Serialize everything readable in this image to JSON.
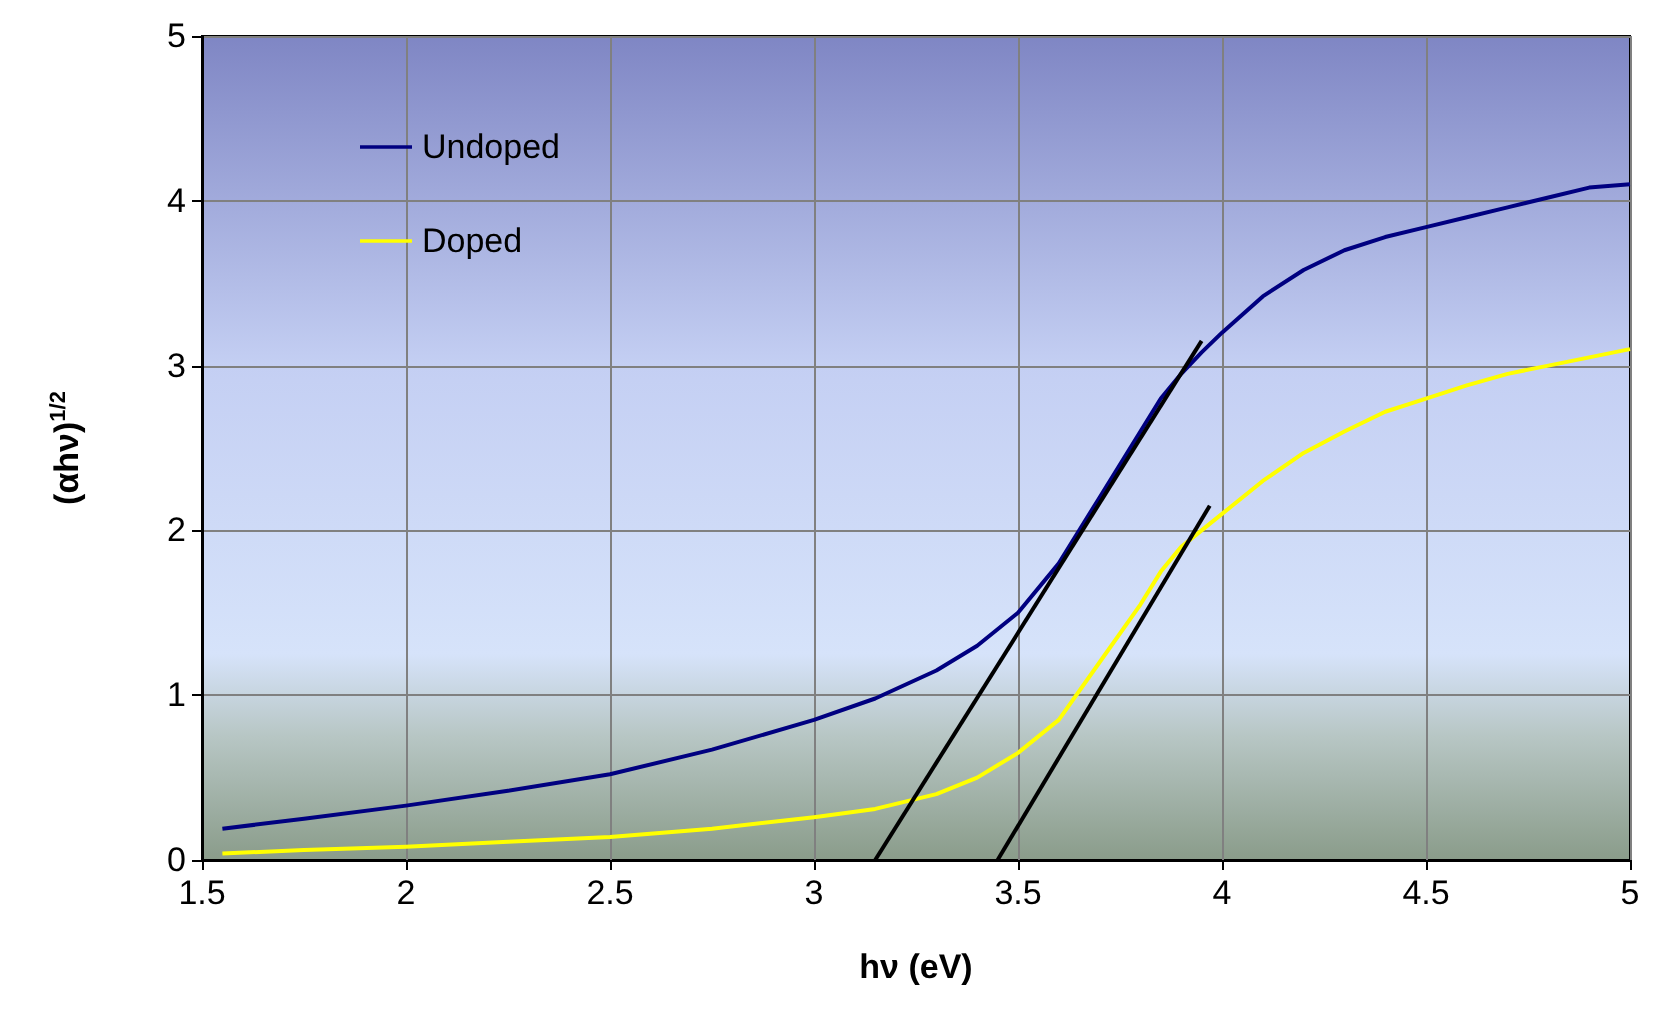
{
  "chart_data": {
    "type": "line",
    "xlabel": "hν (eV)",
    "ylabel": "(αhν)$^{1/2}$",
    "xlim": [
      1.5,
      5
    ],
    "xticks": [
      1.5,
      2,
      2.5,
      3,
      3.5,
      4,
      4.5,
      5
    ],
    "ylim": [
      0,
      5
    ],
    "yticks": [
      0,
      1,
      2,
      3,
      4,
      5
    ],
    "x": [
      1.55,
      1.75,
      2.0,
      2.25,
      2.5,
      2.75,
      3.0,
      3.15,
      3.3,
      3.4,
      3.5,
      3.6,
      3.7,
      3.8,
      3.85,
      3.9,
      3.95,
      4.0,
      4.1,
      4.2,
      4.3,
      4.4,
      4.5,
      4.6,
      4.7,
      4.8,
      4.9,
      5.0
    ],
    "series": [
      {
        "name": "Undoped",
        "color": "#000080",
        "values": [
          0.19,
          0.25,
          0.33,
          0.42,
          0.52,
          0.67,
          0.85,
          0.98,
          1.15,
          1.3,
          1.5,
          1.8,
          2.2,
          2.6,
          2.8,
          2.95,
          3.08,
          3.2,
          3.42,
          3.58,
          3.7,
          3.78,
          3.84,
          3.9,
          3.96,
          4.02,
          4.08,
          4.1
        ]
      },
      {
        "name": "Doped",
        "color": "#ffff00",
        "values": [
          0.04,
          0.06,
          0.08,
          0.11,
          0.14,
          0.19,
          0.26,
          0.31,
          0.4,
          0.5,
          0.65,
          0.85,
          1.2,
          1.55,
          1.75,
          1.9,
          2.0,
          2.1,
          2.3,
          2.47,
          2.6,
          2.72,
          2.8,
          2.88,
          2.95,
          3.0,
          3.05,
          3.1
        ]
      },
      {
        "type": "line",
        "color": "#000000",
        "x": [
          3.15,
          3.95
        ],
        "values": [
          0,
          3.15
        ]
      },
      {
        "type": "line",
        "color": "#000000",
        "x": [
          3.45,
          3.97
        ],
        "values": [
          0,
          2.15
        ]
      }
    ],
    "grid": true,
    "legend": "top left",
    "marker": "none",
    "line_style": "solid"
  }
}
